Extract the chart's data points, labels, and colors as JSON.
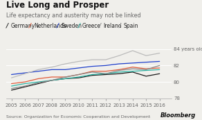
{
  "title": "Live Long and Prosper",
  "subtitle": "Life expectancy and austerity may not be linked",
  "source": "Source: Organization for Economic Cooperation and Development",
  "bloomberg": "Bloomberg",
  "years": [
    2005,
    2006,
    2007,
    2008,
    2009,
    2010,
    2011,
    2012,
    2013,
    2014,
    2015,
    2016
  ],
  "series": {
    "Germany": {
      "color": "#1a1a1a",
      "values": [
        79.0,
        79.4,
        79.8,
        80.2,
        80.4,
        80.5,
        80.8,
        80.9,
        81.0,
        81.2,
        80.7,
        81.0
      ]
    },
    "Netherlands": {
      "color": "#e05a3a",
      "values": [
        79.8,
        80.0,
        80.4,
        80.6,
        80.6,
        80.9,
        81.3,
        81.3,
        81.5,
        81.8,
        81.6,
        81.7
      ]
    },
    "Sweden": {
      "color": "#2040cc",
      "values": [
        80.9,
        81.1,
        81.3,
        81.5,
        81.5,
        81.7,
        81.9,
        82.0,
        82.2,
        82.3,
        82.4,
        82.5
      ]
    },
    "Greece": {
      "color": "#2ab5a5",
      "values": [
        79.5,
        79.8,
        80.0,
        80.2,
        80.4,
        80.6,
        80.9,
        81.0,
        81.2,
        81.3,
        81.4,
        81.5
      ]
    },
    "Ireland": {
      "color": "#888888",
      "values": [
        79.2,
        79.5,
        79.9,
        80.2,
        80.6,
        80.9,
        81.2,
        81.0,
        81.4,
        81.6,
        81.5,
        82.0
      ]
    },
    "Spain": {
      "color": "#bbbbbb",
      "values": [
        80.5,
        81.0,
        81.5,
        81.8,
        82.2,
        82.5,
        82.7,
        82.7,
        83.2,
        83.8,
        83.2,
        83.5
      ]
    }
  },
  "ylim": [
    78.0,
    85.0
  ],
  "yticks": [
    78,
    80,
    82,
    84
  ],
  "bg_color": "#f0efeb",
  "grid_color": "#ffffff",
  "title_fontsize": 8.5,
  "subtitle_fontsize": 5.8,
  "legend_fontsize": 5.5,
  "tick_fontsize": 5.0,
  "source_fontsize": 4.5,
  "bloomberg_fontsize": 6.0
}
